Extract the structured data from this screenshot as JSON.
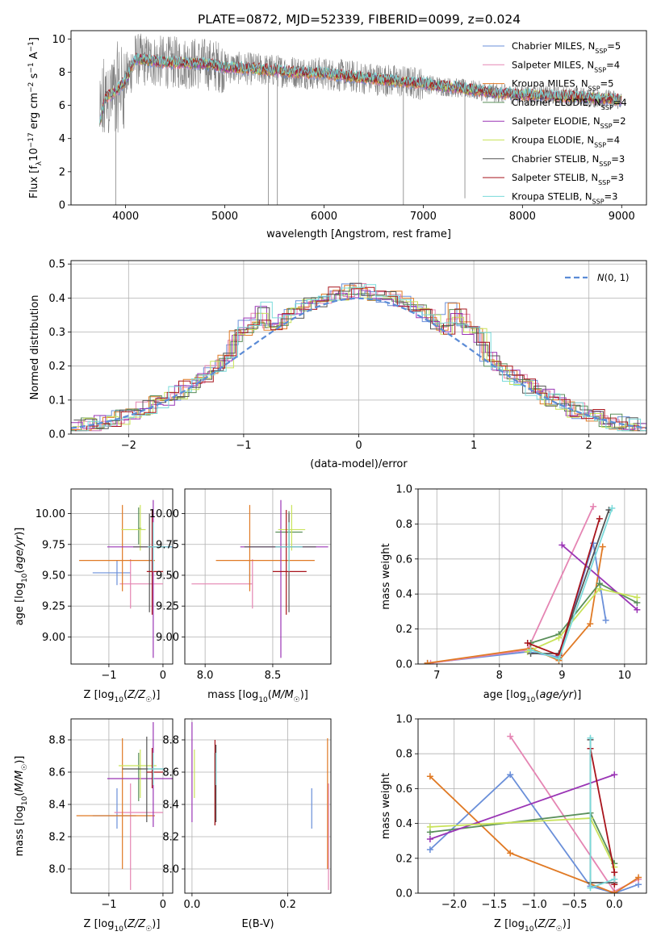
{
  "figure": {
    "title": "PLATE=0872, MJD=52339, FIBERID=0099, z=0.024"
  },
  "colors": {
    "chabrier_miles": "#6a8fd9",
    "salpeter_miles": "#e585b3",
    "kroupa_miles": "#e07a25",
    "chabrier_elodie": "#5a8f5a",
    "salpeter_elodie": "#9a35b5",
    "kroupa_elodie": "#c9e35a",
    "chabrier_stelib": "#555555",
    "salpeter_stelib": "#a8141c",
    "kroupa_stelib": "#7adada",
    "data": "#808080",
    "normal": "#5b8bd6"
  },
  "chart_data": [
    {
      "id": "spectrum",
      "type": "line",
      "xlabel": "wavelength [Angstrom, rest frame]",
      "ylabel": "Flux [f_λ10^-17 erg cm^-2 s^-1 A^-1]",
      "xlim": [
        3450,
        9250
      ],
      "ylim": [
        0,
        10.5
      ],
      "xticks": [
        4000,
        5000,
        6000,
        7000,
        8000,
        9000
      ],
      "yticks": [
        0,
        2,
        4,
        6,
        8,
        10
      ],
      "grid": false,
      "legend_position": "top-right",
      "legend": [
        {
          "name": "Chabrier MILES, N",
          "sub": "SSP",
          "post": "=5",
          "color": "#6a8fd9"
        },
        {
          "name": "Salpeter MILES, N",
          "sub": "SSP",
          "post": "=4",
          "color": "#e585b3"
        },
        {
          "name": "Kroupa MILES, N",
          "sub": "SSP",
          "post": "=5",
          "color": "#e07a25"
        },
        {
          "name": "Chabrier ELODIE, N",
          "sub": "SSP",
          "post": "=4",
          "color": "#5a8f5a"
        },
        {
          "name": "Salpeter ELODIE, N",
          "sub": "SSP",
          "post": "=2",
          "color": "#9a35b5"
        },
        {
          "name": "Kroupa ELODIE, N",
          "sub": "SSP",
          "post": "=4",
          "color": "#c9e35a"
        },
        {
          "name": "Chabrier STELIB, N",
          "sub": "SSP",
          "post": "=3",
          "color": "#555555"
        },
        {
          "name": "Salpeter STELIB, N",
          "sub": "SSP",
          "post": "=3",
          "color": "#a8141c"
        },
        {
          "name": "Kroupa STELIB, N",
          "sub": "SSP",
          "post": "=3",
          "color": "#7adada"
        }
      ],
      "continuum": {
        "x": [
          3740,
          3800,
          3900,
          4000,
          4100,
          4200,
          4400,
          4600,
          4800,
          5000,
          5500,
          6000,
          6500,
          7000,
          7400,
          7800,
          8200,
          8600,
          9000
        ],
        "y": [
          5.0,
          6.5,
          6.8,
          7.5,
          8.8,
          8.7,
          8.6,
          8.55,
          8.5,
          8.3,
          8.1,
          7.9,
          7.6,
          7.3,
          7.0,
          6.7,
          6.6,
          6.5,
          6.3
        ]
      }
    },
    {
      "id": "residuals",
      "type": "line",
      "xlabel": "(data-model)/error",
      "ylabel": "Normed distribution",
      "xlim": [
        -2.5,
        2.5
      ],
      "ylim": [
        0,
        0.51
      ],
      "xticks": [
        -2,
        -1,
        0,
        1,
        2
      ],
      "yticks": [
        0.0,
        0.1,
        0.2,
        0.3,
        0.4,
        0.5
      ],
      "grid": true,
      "legend_position": "top-right",
      "normal_label": "N(0,1)",
      "bin_width": 0.1
    },
    {
      "id": "age-vs-Z",
      "type": "scatter",
      "xlabel": "Z [log10(Z/Z☉)]",
      "ylabel": "age  [log10(age/yr)]",
      "xlim": [
        -1.7,
        0.18
      ],
      "ylim": [
        8.78,
        10.2
      ],
      "xticks": [
        -1,
        0
      ],
      "yticks": [
        9.0,
        9.25,
        9.5,
        9.75,
        10.0
      ],
      "grid": true,
      "points": [
        {
          "series": "chabrier_miles",
          "x": -0.85,
          "y": 9.52,
          "xerr": [
            0.45,
            0.25
          ],
          "yerr": [
            0.1,
            0.1
          ]
        },
        {
          "series": "salpeter_miles",
          "x": -0.6,
          "y": 9.43,
          "xerr": [
            0.2,
            0.6
          ],
          "yerr": [
            0.2,
            0.2
          ]
        },
        {
          "series": "kroupa_miles",
          "x": -0.75,
          "y": 9.62,
          "xerr": [
            0.8,
            0.6
          ],
          "yerr": [
            0.25,
            0.45
          ]
        },
        {
          "series": "chabrier_elodie",
          "x": -0.45,
          "y": 9.88,
          "xerr": [
            0.0,
            0.05
          ],
          "yerr": [
            0.13,
            0.17
          ]
        },
        {
          "series": "salpeter_elodie",
          "x": -0.18,
          "y": 9.73,
          "xerr": [
            0.85,
            0.55
          ],
          "yerr": [
            0.9,
            0.38
          ]
        },
        {
          "series": "kroupa_elodie",
          "x": -0.42,
          "y": 9.87,
          "xerr": [
            0.35,
            0.1
          ],
          "yerr": [
            0.17,
            0.2
          ]
        },
        {
          "series": "chabrier_stelib",
          "x": -0.25,
          "y": 9.73,
          "xerr": [
            0.3,
            0.3
          ],
          "yerr": [
            0.53,
            0.27
          ]
        },
        {
          "series": "salpeter_stelib",
          "x": -0.2,
          "y": 9.53,
          "xerr": [
            0.1,
            0.2
          ],
          "yerr": [
            0.35,
            0.5
          ]
        },
        {
          "series": "kroupa_stelib",
          "x": -0.18,
          "y": 9.73,
          "xerr": [
            0.1,
            0.35
          ],
          "yerr": [
            0.2,
            0.2
          ]
        }
      ]
    },
    {
      "id": "age-vs-mass",
      "type": "scatter",
      "xlabel": "mass [log10(M/M☉)]",
      "ylabel": "",
      "xlim": [
        7.85,
        8.93
      ],
      "ylim": [
        8.78,
        10.2
      ],
      "xticks": [
        8.0,
        8.5
      ],
      "yticks": [
        9.0,
        9.25,
        9.5,
        9.75,
        10.0
      ],
      "grid": true,
      "points": [
        {
          "series": "chabrier_miles",
          "x": 8.33,
          "y": 9.52,
          "xerr": [
            0.0,
            0.0
          ],
          "yerr": [
            0.1,
            0.1
          ]
        },
        {
          "series": "salpeter_miles",
          "x": 8.35,
          "y": 9.43,
          "xerr": [
            0.45,
            0.0
          ],
          "yerr": [
            0.2,
            0.2
          ]
        },
        {
          "series": "kroupa_miles",
          "x": 8.33,
          "y": 9.62,
          "xerr": [
            0.25,
            0.48
          ],
          "yerr": [
            0.25,
            0.45
          ]
        },
        {
          "series": "chabrier_elodie",
          "x": 8.62,
          "y": 9.85,
          "xerr": [
            0.1,
            0.1
          ],
          "yerr": [
            0.13,
            0.17
          ]
        },
        {
          "series": "salpeter_elodie",
          "x": 8.56,
          "y": 9.73,
          "xerr": [
            0.3,
            0.35
          ],
          "yerr": [
            0.9,
            0.38
          ]
        },
        {
          "series": "kroupa_elodie",
          "x": 8.64,
          "y": 9.87,
          "xerr": [
            0.1,
            0.1
          ],
          "yerr": [
            0.17,
            0.2
          ]
        },
        {
          "series": "chabrier_stelib",
          "x": 8.62,
          "y": 9.73,
          "xerr": [
            0.33,
            0.2
          ],
          "yerr": [
            0.53,
            0.27
          ]
        },
        {
          "series": "salpeter_stelib",
          "x": 8.6,
          "y": 9.53,
          "xerr": [
            0.1,
            0.15
          ],
          "yerr": [
            0.35,
            0.5
          ]
        },
        {
          "series": "kroupa_stelib",
          "x": 8.62,
          "y": 9.73,
          "xerr": [
            0.1,
            0.1
          ],
          "yerr": [
            0.2,
            0.2
          ]
        }
      ]
    },
    {
      "id": "mass-weight-vs-age",
      "type": "line",
      "xlabel": "age  [log10(age/yr)]",
      "ylabel": "mass weight",
      "xlim": [
        6.7,
        10.35
      ],
      "ylim": [
        0,
        1.0
      ],
      "xticks": [
        7,
        8,
        9,
        10
      ],
      "yticks": [
        0.0,
        0.2,
        0.4,
        0.6,
        0.8,
        1.0
      ],
      "grid": true,
      "series": [
        {
          "name": "Chabrier MILES",
          "key": "chabrier_miles",
          "x": [
            6.85,
            8.45,
            8.95,
            9.5,
            9.7
          ],
          "y": [
            0.005,
            0.07,
            0.04,
            0.69,
            0.25
          ]
        },
        {
          "name": "Salpeter MILES",
          "key": "salpeter_miles",
          "x": [
            6.9,
            8.45,
            9.5
          ],
          "y": [
            0.005,
            0.08,
            0.9
          ]
        },
        {
          "name": "Kroupa MILES",
          "key": "kroupa_miles",
          "x": [
            6.85,
            8.5,
            8.95,
            9.45,
            9.65
          ],
          "y": [
            0.005,
            0.09,
            0.02,
            0.23,
            0.67
          ]
        },
        {
          "name": "Chabrier ELODIE",
          "key": "chabrier_elodie",
          "x": [
            8.5,
            8.95,
            9.6,
            10.2
          ],
          "y": [
            0.12,
            0.17,
            0.46,
            0.35
          ]
        },
        {
          "name": "Salpeter ELODIE",
          "key": "salpeter_elodie",
          "x": [
            9.0,
            10.2
          ],
          "y": [
            0.68,
            0.31
          ]
        },
        {
          "name": "Kroupa ELODIE",
          "key": "kroupa_elodie",
          "x": [
            8.45,
            8.95,
            9.6,
            10.2
          ],
          "y": [
            0.07,
            0.15,
            0.43,
            0.38
          ]
        },
        {
          "name": "Chabrier STELIB",
          "key": "chabrier_stelib",
          "x": [
            8.5,
            8.95,
            9.75
          ],
          "y": [
            0.06,
            0.06,
            0.88
          ]
        },
        {
          "name": "Salpeter STELIB",
          "key": "salpeter_stelib",
          "x": [
            8.45,
            8.95,
            9.6
          ],
          "y": [
            0.12,
            0.05,
            0.83
          ]
        },
        {
          "name": "Kroupa STELIB",
          "key": "kroupa_stelib",
          "x": [
            8.5,
            8.95,
            9.8
          ],
          "y": [
            0.08,
            0.03,
            0.89
          ]
        }
      ]
    },
    {
      "id": "mass-vs-Z",
      "type": "scatter",
      "xlabel": "Z [log10(Z/Z☉)]",
      "ylabel": "mass [log10(M/M☉)]",
      "xlim": [
        -1.7,
        0.18
      ],
      "ylim": [
        7.85,
        8.93
      ],
      "xticks": [
        -1,
        0
      ],
      "yticks": [
        8.0,
        8.2,
        8.4,
        8.6,
        8.8
      ],
      "grid": true,
      "points": [
        {
          "series": "chabrier_miles",
          "x": -0.85,
          "y": 8.33,
          "xerr": [
            0.45,
            0.35
          ],
          "yerr": [
            0.08,
            0.17
          ]
        },
        {
          "series": "salpeter_miles",
          "x": -0.6,
          "y": 8.35,
          "xerr": [
            0.3,
            0.6
          ],
          "yerr": [
            0.48,
            0.18
          ]
        },
        {
          "series": "kroupa_miles",
          "x": -0.75,
          "y": 8.33,
          "xerr": [
            0.85,
            0.6
          ],
          "yerr": [
            0.33,
            0.48
          ]
        },
        {
          "series": "chabrier_elodie",
          "x": -0.45,
          "y": 8.62,
          "xerr": [
            0.0,
            0.05
          ],
          "yerr": [
            0.2,
            0.1
          ]
        },
        {
          "series": "salpeter_elodie",
          "x": -0.18,
          "y": 8.56,
          "xerr": [
            0.85,
            0.5
          ],
          "yerr": [
            0.3,
            0.35
          ]
        },
        {
          "series": "kroupa_elodie",
          "x": -0.42,
          "y": 8.64,
          "xerr": [
            0.4,
            0.3
          ],
          "yerr": [
            0.2,
            0.1
          ]
        },
        {
          "series": "chabrier_stelib",
          "x": -0.3,
          "y": 8.62,
          "xerr": [
            0.45,
            0.3
          ],
          "yerr": [
            0.33,
            0.2
          ]
        },
        {
          "series": "salpeter_stelib",
          "x": -0.2,
          "y": 8.6,
          "xerr": [
            0.1,
            0.2
          ],
          "yerr": [
            0.1,
            0.15
          ]
        },
        {
          "series": "kroupa_stelib",
          "x": -0.18,
          "y": 8.62,
          "xerr": [
            0.1,
            0.2
          ],
          "yerr": [
            0.1,
            0.1
          ]
        }
      ]
    },
    {
      "id": "mass-vs-ebv",
      "type": "scatter",
      "xlabel": "E(B-V)",
      "ylabel": "",
      "xlim": [
        -0.015,
        0.29
      ],
      "ylim": [
        7.85,
        8.93
      ],
      "xticks": [
        0.0,
        0.2
      ],
      "yticks": [
        8.0,
        8.2,
        8.4,
        8.6,
        8.8
      ],
      "grid": true,
      "points": [
        {
          "series": "chabrier_miles",
          "x": 0.25,
          "y": 8.33,
          "xerr": [
            0,
            0
          ],
          "yerr": [
            0.08,
            0.17
          ]
        },
        {
          "series": "salpeter_miles",
          "x": 0.285,
          "y": 8.35,
          "xerr": [
            0,
            0
          ],
          "yerr": [
            0.48,
            0.18
          ]
        },
        {
          "series": "kroupa_miles",
          "x": 0.283,
          "y": 8.33,
          "xerr": [
            0,
            0
          ],
          "yerr": [
            0.33,
            0.48
          ]
        },
        {
          "series": "chabrier_elodie",
          "x": 0.048,
          "y": 8.62,
          "xerr": [
            0,
            0
          ],
          "yerr": [
            0.35,
            0.1
          ]
        },
        {
          "series": "salpeter_elodie",
          "x": 0.0,
          "y": 8.56,
          "xerr": [
            0,
            0
          ],
          "yerr": [
            0.27,
            0.35
          ]
        },
        {
          "series": "kroupa_elodie",
          "x": 0.005,
          "y": 8.64,
          "xerr": [
            0,
            0
          ],
          "yerr": [
            0.2,
            0.1
          ]
        },
        {
          "series": "chabrier_stelib",
          "x": 0.05,
          "y": 8.62,
          "xerr": [
            0,
            0
          ],
          "yerr": [
            0.33,
            0.15
          ]
        },
        {
          "series": "salpeter_stelib",
          "x": 0.048,
          "y": 8.6,
          "xerr": [
            0,
            0
          ],
          "yerr": [
            0.33,
            0.2
          ]
        },
        {
          "series": "kroupa_stelib",
          "x": 0.05,
          "y": 8.62,
          "xerr": [
            0,
            0
          ],
          "yerr": [
            0.1,
            0.1
          ]
        }
      ]
    },
    {
      "id": "mass-weight-vs-Z",
      "type": "line",
      "xlabel": "Z [log10(Z/Z☉)]",
      "ylabel": "mass weight",
      "xlim": [
        -2.45,
        0.4
      ],
      "ylim": [
        0,
        1.0
      ],
      "xticks": [
        -2.0,
        -1.5,
        -1.0,
        -0.5,
        0.0
      ],
      "yticks": [
        0.0,
        0.2,
        0.4,
        0.6,
        0.8,
        1.0
      ],
      "grid": true,
      "series": [
        {
          "name": "Chabrier MILES",
          "key": "chabrier_miles",
          "x": [
            -2.3,
            -1.3,
            -0.3,
            0.0,
            0.3
          ],
          "y": [
            0.25,
            0.68,
            0.04,
            0.0,
            0.05
          ]
        },
        {
          "name": "Salpeter MILES",
          "key": "salpeter_miles",
          "x": [
            -1.3,
            0.0,
            0.3
          ],
          "y": [
            0.9,
            0.01,
            0.08
          ]
        },
        {
          "name": "Kroupa MILES",
          "key": "kroupa_miles",
          "x": [
            -2.3,
            -1.3,
            0.0,
            0.3
          ],
          "y": [
            0.67,
            0.23,
            0.0,
            0.09
          ]
        },
        {
          "name": "Chabrier ELODIE",
          "key": "chabrier_elodie",
          "x": [
            -2.3,
            -0.3,
            0.0
          ],
          "y": [
            0.35,
            0.46,
            0.17
          ]
        },
        {
          "name": "Salpeter ELODIE",
          "key": "salpeter_elodie",
          "x": [
            -2.3,
            0.0
          ],
          "y": [
            0.31,
            0.68
          ]
        },
        {
          "name": "Kroupa ELODIE",
          "key": "kroupa_elodie",
          "x": [
            -2.3,
            -0.3,
            0.0
          ],
          "y": [
            0.38,
            0.43,
            0.15
          ]
        },
        {
          "name": "Chabrier STELIB",
          "key": "chabrier_stelib",
          "x": [
            -0.3,
            -0.3,
            0.0
          ],
          "y": [
            0.88,
            0.06,
            0.06
          ]
        },
        {
          "name": "Salpeter STELIB",
          "key": "salpeter_stelib",
          "x": [
            -0.3,
            0.0,
            0.0
          ],
          "y": [
            0.83,
            0.12,
            0.05
          ]
        },
        {
          "name": "Kroupa STELIB",
          "key": "kroupa_stelib",
          "x": [
            -0.3,
            -0.3,
            0.0
          ],
          "y": [
            0.89,
            0.03,
            0.08
          ]
        }
      ]
    }
  ]
}
